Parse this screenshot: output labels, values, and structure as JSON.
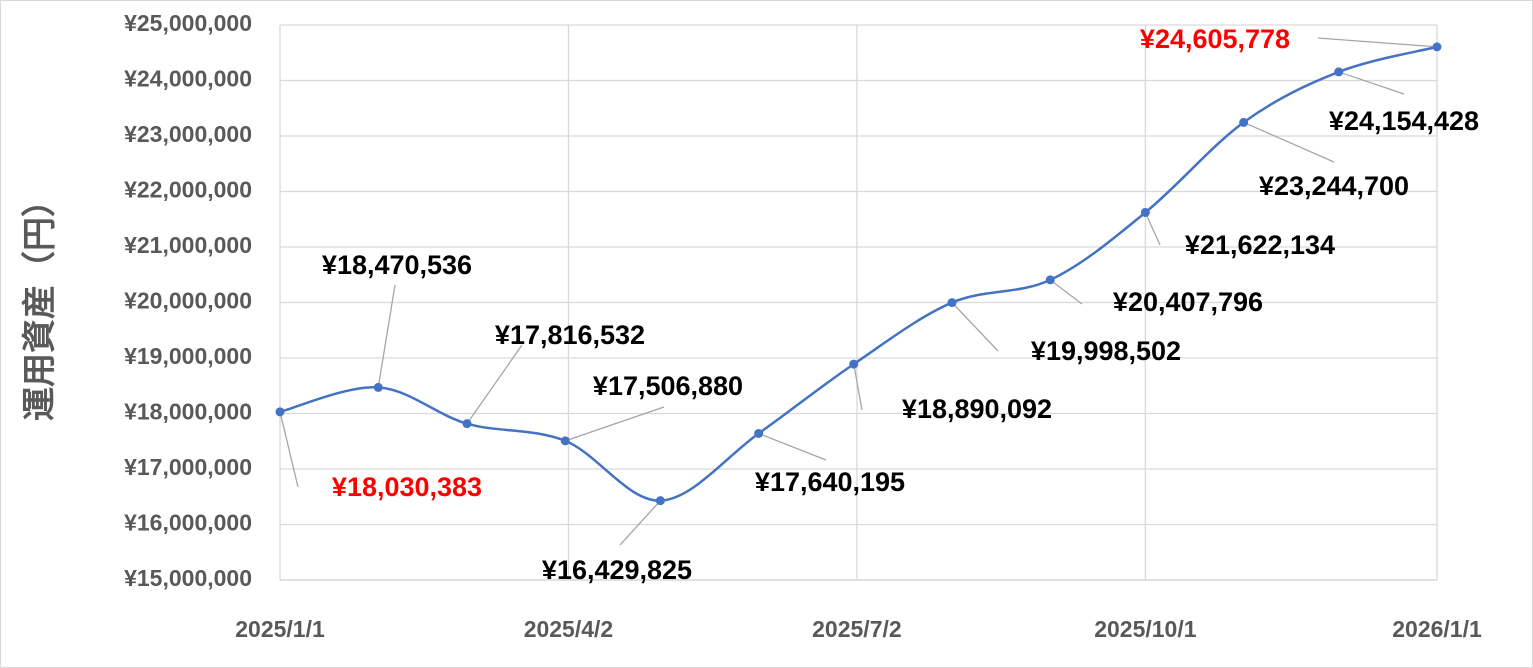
{
  "chart_data": {
    "type": "line",
    "y_label": "運用資産（円）",
    "x": [
      "2025/1/1",
      "2025/2/1",
      "2025/3/1",
      "2025/4/1",
      "2025/5/1",
      "2025/6/1",
      "2025/7/1",
      "2025/8/1",
      "2025/9/1",
      "2025/10/1",
      "2025/11/1",
      "2025/12/1",
      "2026/1/1"
    ],
    "series": [
      {
        "color": "#4472c4",
        "values": [
          18030383,
          18470536,
          17816532,
          17506880,
          16429825,
          17640195,
          18890092,
          19998502,
          20407796,
          21622134,
          23244700,
          24154428,
          24605778
        ],
        "value_labels": [
          "¥18,030,383",
          "¥18,470,536",
          "¥17,816,532",
          "¥17,506,880",
          "¥16,429,825",
          "¥17,640,195",
          "¥18,890,092",
          "¥19,998,502",
          "¥20,407,796",
          "¥21,622,134",
          "¥23,244,700",
          "¥24,154,428",
          "¥24,605,778"
        ],
        "value_label_colors": [
          "#ff0000",
          "#000000",
          "#000000",
          "#000000",
          "#000000",
          "#000000",
          "#000000",
          "#000000",
          "#000000",
          "#000000",
          "#000000",
          "#000000",
          "#ff0000"
        ]
      }
    ],
    "xlim": [
      "2025/1/1",
      "2026/1/1"
    ],
    "xticks": [
      "2025/1/1",
      "2025/4/2",
      "2025/7/2",
      "2025/10/1",
      "2026/1/1"
    ],
    "ylim": [
      15000000,
      25000000
    ],
    "yticks": [
      {
        "value": 15000000,
        "label": "¥15,000,000"
      },
      {
        "value": 16000000,
        "label": "¥16,000,000"
      },
      {
        "value": 17000000,
        "label": "¥17,000,000"
      },
      {
        "value": 18000000,
        "label": "¥18,000,000"
      },
      {
        "value": 19000000,
        "label": "¥19,000,000"
      },
      {
        "value": 20000000,
        "label": "¥20,000,000"
      },
      {
        "value": 21000000,
        "label": "¥21,000,000"
      },
      {
        "value": 22000000,
        "label": "¥22,000,000"
      },
      {
        "value": 23000000,
        "label": "¥23,000,000"
      },
      {
        "value": 24000000,
        "label": "¥24,000,000"
      },
      {
        "value": 25000000,
        "label": "¥25,000,000"
      }
    ],
    "grid": true,
    "smooth": true
  }
}
